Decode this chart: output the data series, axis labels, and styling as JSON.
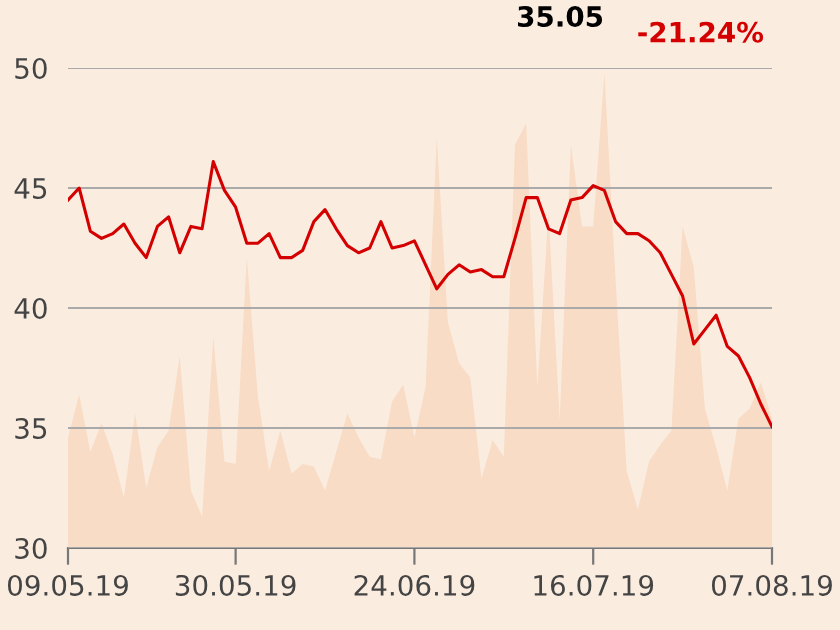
{
  "chart_data": {
    "type": "line",
    "categories": [
      "09.05.19",
      null,
      null,
      null,
      null,
      null,
      null,
      null,
      null,
      null,
      null,
      null,
      null,
      null,
      null,
      "30.05.19",
      null,
      null,
      null,
      null,
      null,
      null,
      null,
      null,
      null,
      null,
      null,
      null,
      null,
      null,
      null,
      "24.06.19",
      null,
      null,
      null,
      null,
      null,
      null,
      null,
      null,
      null,
      null,
      null,
      null,
      null,
      null,
      null,
      "16.07.19",
      null,
      null,
      null,
      null,
      null,
      null,
      null,
      null,
      null,
      null,
      null,
      null,
      null,
      null,
      null,
      "07.08.19"
    ],
    "series": [
      {
        "type": "area",
        "color": "#f8dcc6",
        "values": [
          34.6,
          36.4,
          34.0,
          35.2,
          33.9,
          32.1,
          35.6,
          32.5,
          34.2,
          34.9,
          38.0,
          32.4,
          31.3,
          38.8,
          33.6,
          33.5,
          42.1,
          36.3,
          33.2,
          34.9,
          33.1,
          33.5,
          33.4,
          32.4,
          34.0,
          35.6,
          34.6,
          33.8,
          33.7,
          36.1,
          36.8,
          34.6,
          36.7,
          47.1,
          39.4,
          37.7,
          37.1,
          32.9,
          34.5,
          33.8,
          46.8,
          47.7,
          36.7,
          44.0,
          35.3,
          46.8,
          43.4,
          43.4,
          49.8,
          41.2,
          33.2,
          31.6,
          33.6,
          34.3,
          34.9,
          43.4,
          41.7,
          35.8,
          34.2,
          32.4,
          35.4,
          35.8,
          36.9,
          35.4
        ]
      },
      {
        "color": "#d40000",
        "values": [
          44.5,
          45.0,
          43.2,
          42.9,
          43.1,
          43.5,
          42.7,
          42.1,
          43.4,
          43.8,
          42.3,
          43.4,
          43.3,
          46.1,
          44.9,
          44.2,
          42.7,
          42.7,
          43.1,
          42.1,
          42.1,
          42.4,
          43.6,
          44.1,
          43.3,
          42.6,
          42.3,
          42.5,
          43.6,
          42.5,
          42.6,
          42.8,
          41.8,
          40.8,
          41.4,
          41.8,
          41.5,
          41.6,
          41.3,
          41.3,
          42.9,
          44.6,
          44.6,
          43.3,
          43.1,
          44.5,
          44.6,
          45.1,
          44.9,
          43.6,
          43.1,
          43.1,
          42.8,
          42.3,
          41.4,
          40.5,
          38.5,
          39.1,
          39.7,
          38.4,
          38.0,
          37.1,
          36.0,
          35.05
        ]
      }
    ],
    "ylim": [
      30,
      50
    ],
    "yticks": [
      30,
      35,
      40,
      45,
      50
    ],
    "grid": "y",
    "annotations": [
      "35.05",
      "-21.24%"
    ]
  }
}
